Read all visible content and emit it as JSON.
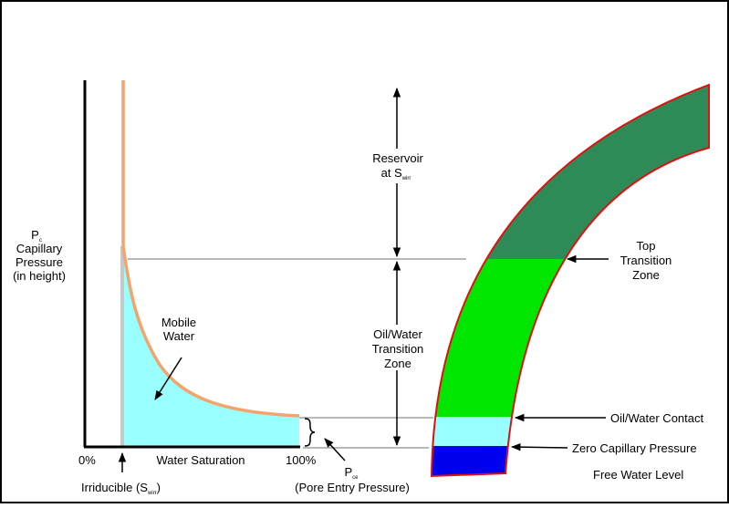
{
  "y_axis": {
    "pc_main": "P",
    "pc_sub": "c",
    "line1": "Capillary",
    "line2": "Pressure",
    "line3": "(in height)"
  },
  "x_axis": {
    "min_label": "0%",
    "max_label": "100%",
    "title": "Water Saturation"
  },
  "curve_labels": {
    "mobile_line1": "Mobile",
    "mobile_line2": "Water",
    "irreducible_main": "Irriducible (S",
    "irreducible_sub": "wirr",
    "irreducible_close": ")"
  },
  "pore_entry": {
    "p_main": "P",
    "p_sub": "ce",
    "description": "(Pore Entry Pressure)"
  },
  "zones": {
    "reservoir_line1": "Reservoir",
    "reservoir_line2_main": "at S",
    "reservoir_line2_sub": "wirr",
    "transition_line1": "Oil/Water",
    "transition_line2": "Transition",
    "transition_line3": "Zone"
  },
  "right_labels": {
    "top_line1": "Top",
    "top_line2": "Transition",
    "top_line3": "Zone",
    "owc": "Oil/Water Contact",
    "zero_cap": "Zero Capillary Pressure",
    "fwl": "Free Water Level"
  },
  "colors": {
    "reservoir_green": "#2e8b57",
    "transition_green": "#00e600",
    "water_cyan": "#99ffff",
    "free_water_blue": "#0000ee",
    "curve_orange": "#f4a36c",
    "reservoir_outline": "#e01010"
  }
}
